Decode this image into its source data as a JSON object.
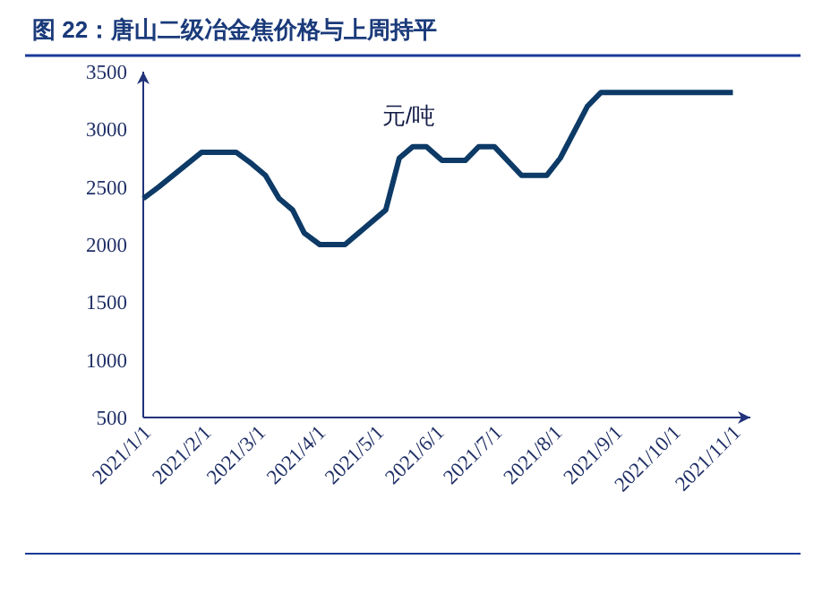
{
  "chart_data": {
    "type": "line",
    "title": "图 22：唐山二级冶金焦价格与上周持平",
    "ylabel": "元/吨",
    "x": [
      "2021-01-01",
      "2021-01-09",
      "2021-01-20",
      "2021-01-31",
      "2021-02-18",
      "2021-02-26",
      "2021-03-05",
      "2021-03-12",
      "2021-03-19",
      "2021-03-25",
      "2021-04-02",
      "2021-04-15",
      "2021-04-22",
      "2021-05-06",
      "2021-05-13",
      "2021-05-20",
      "2021-05-27",
      "2021-06-04",
      "2021-06-16",
      "2021-06-23",
      "2021-07-01",
      "2021-07-15",
      "2021-07-28",
      "2021-08-04",
      "2021-08-18",
      "2021-08-25",
      "2021-11-01"
    ],
    "series": [
      {
        "color": "#0d3a66",
        "values": [
          2400,
          2500,
          2650,
          2800,
          2800,
          2700,
          2600,
          2400,
          2300,
          2100,
          2000,
          2000,
          2100,
          2300,
          2750,
          2850,
          2850,
          2730,
          2730,
          2850,
          2850,
          2600,
          2600,
          2750,
          3200,
          3320,
          3320
        ]
      }
    ],
    "xlim": [
      "2021-01-01",
      "2021-11-10"
    ],
    "xticks": [
      {
        "value": "2021-01-01",
        "label": "2021/1/1"
      },
      {
        "value": "2021-02-01",
        "label": "2021/2/1"
      },
      {
        "value": "2021-03-01",
        "label": "2021/3/1"
      },
      {
        "value": "2021-04-01",
        "label": "2021/4/1"
      },
      {
        "value": "2021-05-01",
        "label": "2021/5/1"
      },
      {
        "value": "2021-06-01",
        "label": "2021/6/1"
      },
      {
        "value": "2021-07-01",
        "label": "2021/7/1"
      },
      {
        "value": "2021-08-01",
        "label": "2021/8/1"
      },
      {
        "value": "2021-09-01",
        "label": "2021/9/1"
      },
      {
        "value": "2021-10-01",
        "label": "2021/10/1"
      },
      {
        "value": "2021-11-01",
        "label": "2021/11/1"
      }
    ],
    "ylim": [
      500,
      3500
    ],
    "yticks": [
      500,
      1000,
      1500,
      2000,
      2500,
      3000,
      3500
    ],
    "grid": false,
    "marker": "none",
    "line_style": "solid"
  }
}
